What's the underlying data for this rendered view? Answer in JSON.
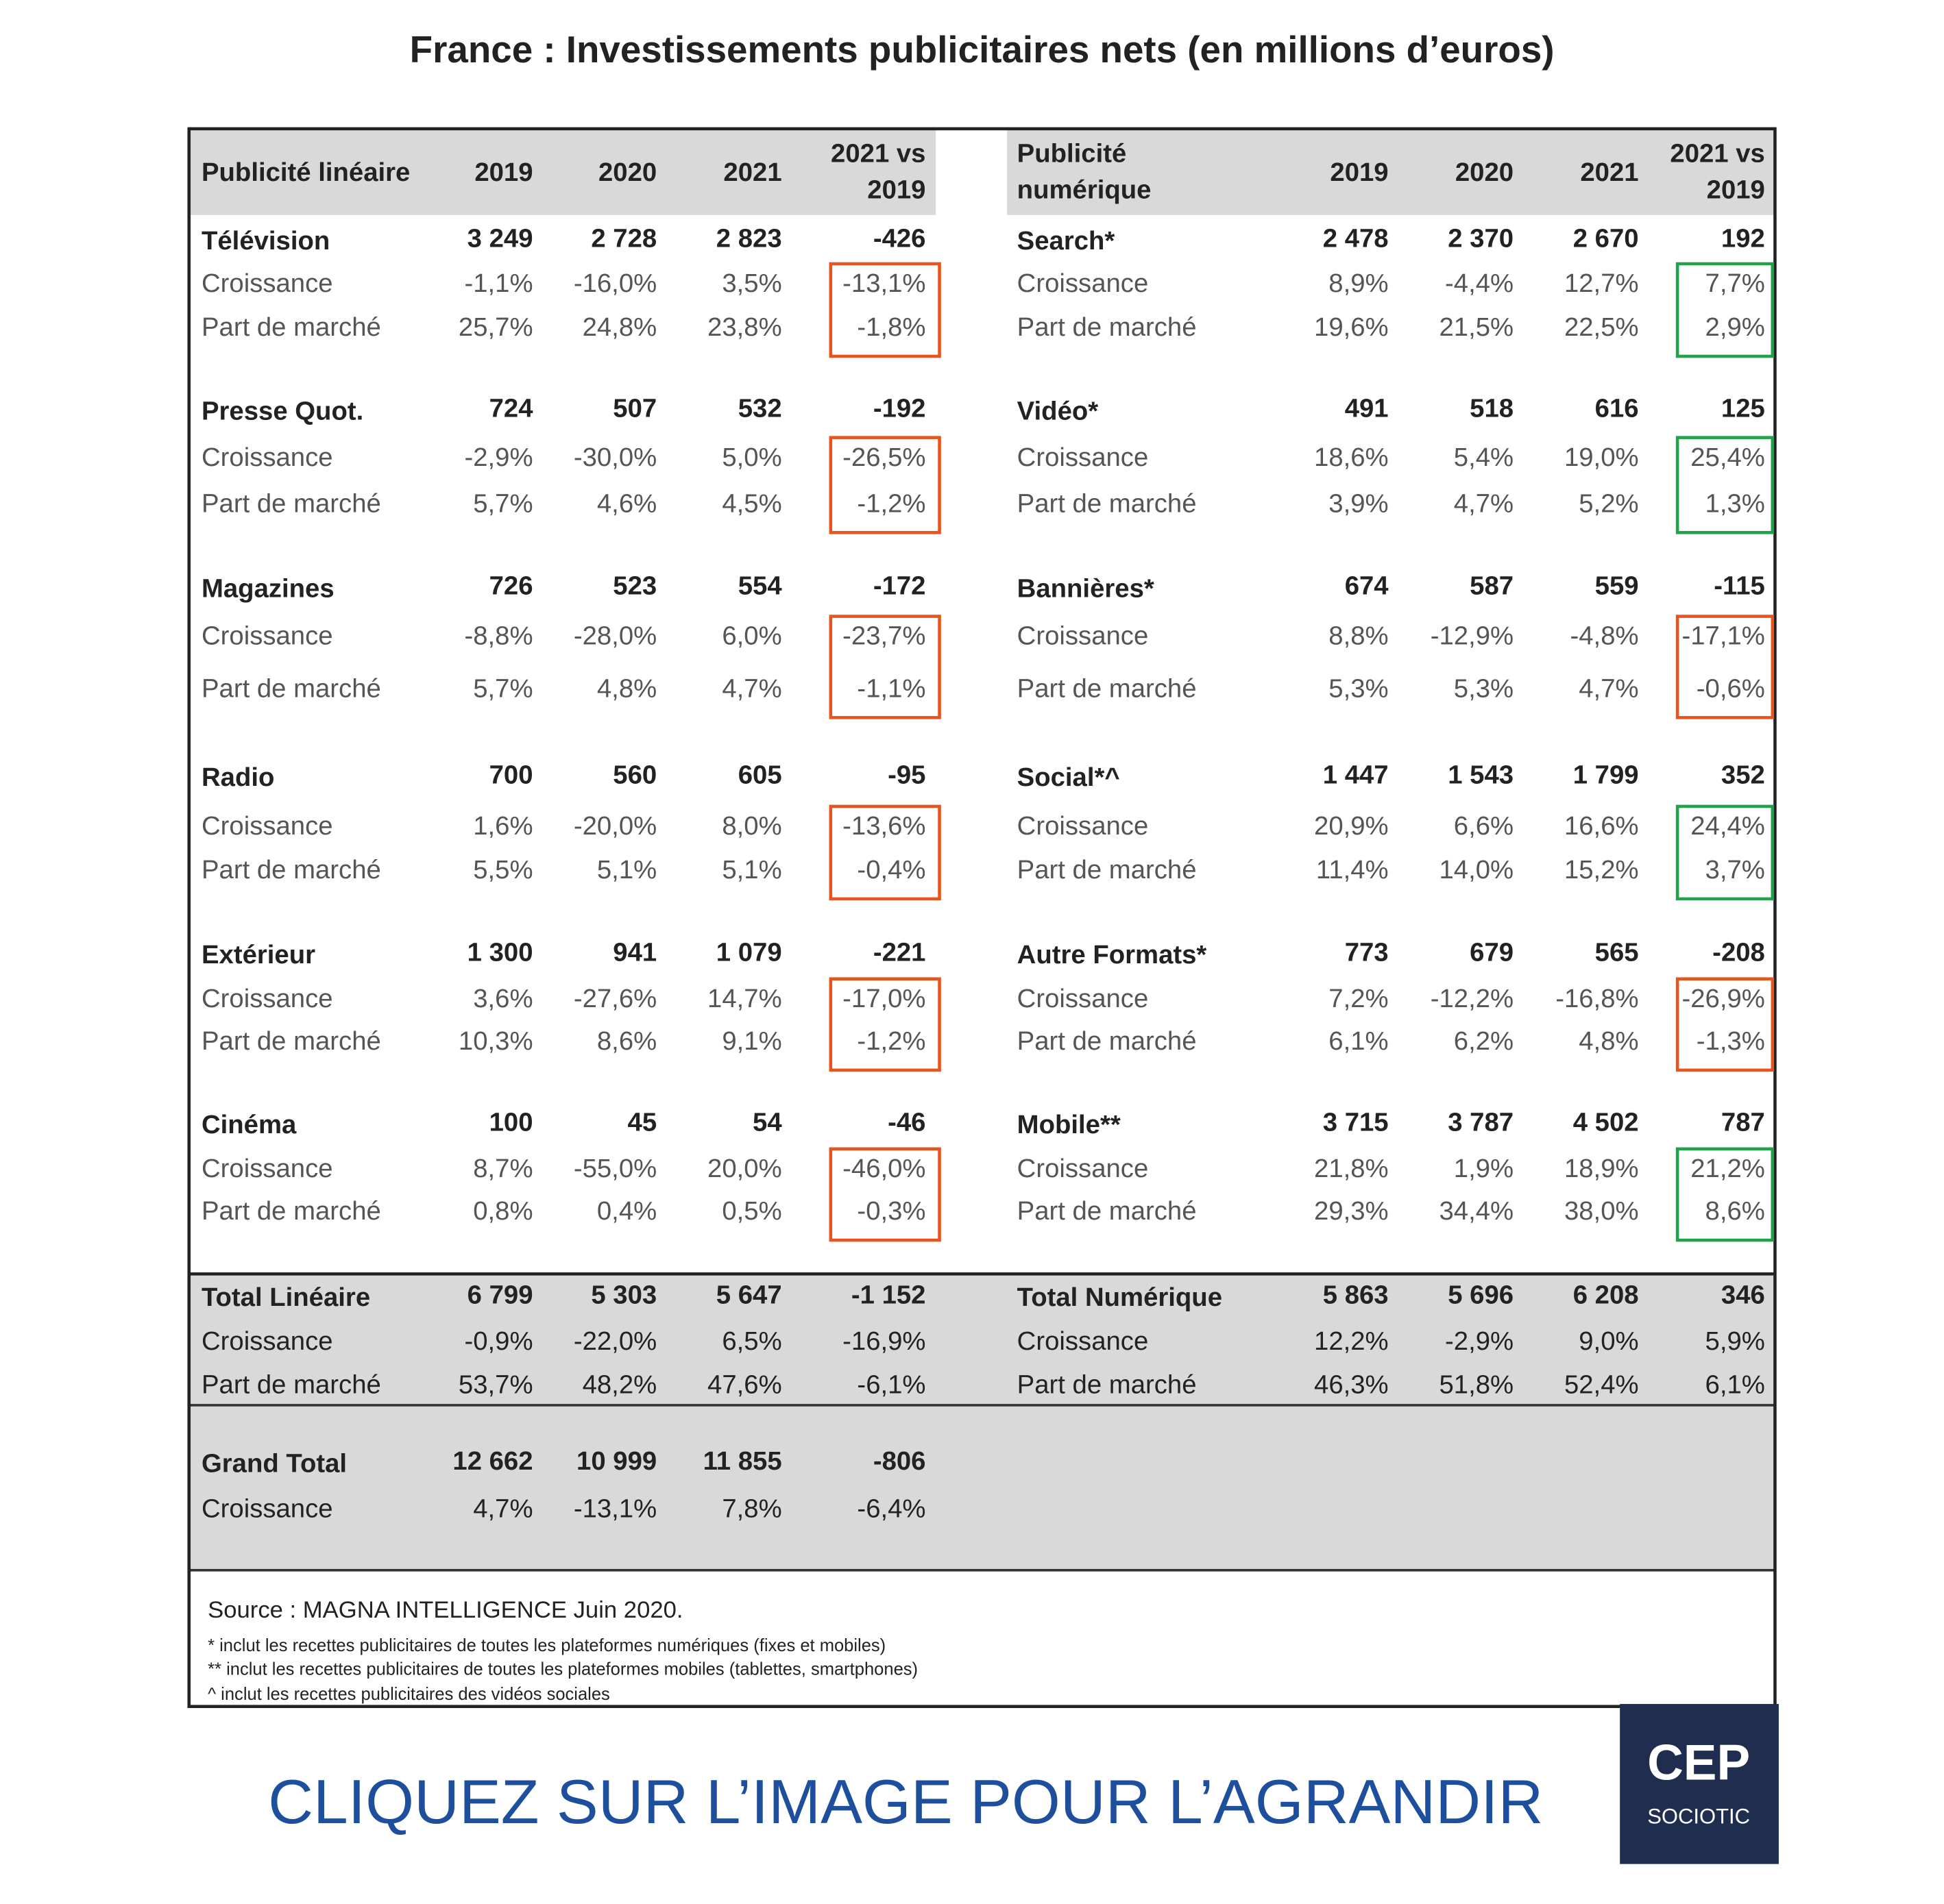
{
  "title": "France : Investissements publicitaires nets (en millions d’euros)",
  "growth_label": "Croissance",
  "share_label": "Part de marché",
  "left": {
    "header": [
      [
        "Publicité linéaire"
      ],
      [
        "2019"
      ],
      [
        "2020"
      ],
      [
        "2021"
      ],
      [
        "2021 vs",
        "2019"
      ]
    ],
    "groups": [
      {
        "name": "Télévision",
        "values": [
          "3 249",
          "2 728",
          "2 823",
          "-426"
        ],
        "growth": [
          "-1,1%",
          "-16,0%",
          "3,5%",
          "-13,1%"
        ],
        "share": [
          "25,7%",
          "24,8%",
          "23,8%",
          "-1,8%"
        ],
        "highlight": "#e8541e"
      },
      {
        "name": "Presse Quot.",
        "values": [
          "724",
          "507",
          "532",
          "-192"
        ],
        "growth": [
          "-2,9%",
          "-30,0%",
          "5,0%",
          "-26,5%"
        ],
        "share": [
          "5,7%",
          "4,6%",
          "4,5%",
          "-1,2%"
        ],
        "highlight": "#e8541e"
      },
      {
        "name": "Magazines",
        "values": [
          "726",
          "523",
          "554",
          "-172"
        ],
        "growth": [
          "-8,8%",
          "-28,0%",
          "6,0%",
          "-23,7%"
        ],
        "share": [
          "5,7%",
          "4,8%",
          "4,7%",
          "-1,1%"
        ],
        "highlight": "#e8541e"
      },
      {
        "name": "Radio",
        "values": [
          "700",
          "560",
          "605",
          "-95"
        ],
        "growth": [
          "1,6%",
          "-20,0%",
          "8,0%",
          "-13,6%"
        ],
        "share": [
          "5,5%",
          "5,1%",
          "5,1%",
          "-0,4%"
        ],
        "highlight": "#e8541e"
      },
      {
        "name": "Extérieur",
        "values": [
          "1 300",
          "941",
          "1 079",
          "-221"
        ],
        "growth": [
          "3,6%",
          "-27,6%",
          "14,7%",
          "-17,0%"
        ],
        "share": [
          "10,3%",
          "8,6%",
          "9,1%",
          "-1,2%"
        ],
        "highlight": "#e8541e"
      },
      {
        "name": "Cinéma",
        "values": [
          "100",
          "45",
          "54",
          "-46"
        ],
        "growth": [
          "8,7%",
          "-55,0%",
          "20,0%",
          "-46,0%"
        ],
        "share": [
          "0,8%",
          "0,4%",
          "0,5%",
          "-0,3%"
        ],
        "highlight": "#e8541e"
      }
    ],
    "total": {
      "name": "Total Linéaire",
      "values": [
        "6 799",
        "5 303",
        "5 647",
        "-1 152"
      ],
      "growth": [
        "-0,9%",
        "-22,0%",
        "6,5%",
        "-16,9%"
      ],
      "share": [
        "53,7%",
        "48,2%",
        "47,6%",
        "-6,1%"
      ]
    }
  },
  "right": {
    "header": [
      [
        "Publicité",
        "numérique"
      ],
      [
        "2019"
      ],
      [
        "2020"
      ],
      [
        "2021"
      ],
      [
        "2021 vs",
        "2019"
      ]
    ],
    "groups": [
      {
        "name": "Search*",
        "values": [
          "2 478",
          "2 370",
          "2 670",
          "192"
        ],
        "growth": [
          "8,9%",
          "-4,4%",
          "12,7%",
          "7,7%"
        ],
        "share": [
          "19,6%",
          "21,5%",
          "22,5%",
          "2,9%"
        ],
        "highlight": "#1fa24a"
      },
      {
        "name": "Vidéo*",
        "values": [
          "491",
          "518",
          "616",
          "125"
        ],
        "growth": [
          "18,6%",
          "5,4%",
          "19,0%",
          "25,4%"
        ],
        "share": [
          "3,9%",
          "4,7%",
          "5,2%",
          "1,3%"
        ],
        "highlight": "#1fa24a"
      },
      {
        "name": "Bannières*",
        "values": [
          "674",
          "587",
          "559",
          "-115"
        ],
        "growth": [
          "8,8%",
          "-12,9%",
          "-4,8%",
          "-17,1%"
        ],
        "share": [
          "5,3%",
          "5,3%",
          "4,7%",
          "-0,6%"
        ],
        "highlight": "#e8541e"
      },
      {
        "name": "Social*^",
        "values": [
          "1 447",
          "1 543",
          "1 799",
          "352"
        ],
        "growth": [
          "20,9%",
          "6,6%",
          "16,6%",
          "24,4%"
        ],
        "share": [
          "11,4%",
          "14,0%",
          "15,2%",
          "3,7%"
        ],
        "highlight": "#1fa24a"
      },
      {
        "name": "Autre Formats*",
        "values": [
          "773",
          "679",
          "565",
          "-208"
        ],
        "growth": [
          "7,2%",
          "-12,2%",
          "-16,8%",
          "-26,9%"
        ],
        "share": [
          "6,1%",
          "6,2%",
          "4,8%",
          "-1,3%"
        ],
        "highlight": "#e8541e"
      },
      {
        "name": "Mobile**",
        "values": [
          "3 715",
          "3 787",
          "4 502",
          "787"
        ],
        "growth": [
          "21,8%",
          "1,9%",
          "18,9%",
          "21,2%"
        ],
        "share": [
          "29,3%",
          "34,4%",
          "38,0%",
          "8,6%"
        ],
        "highlight": "#1fa24a"
      }
    ],
    "total": {
      "name": "Total Numérique",
      "values": [
        "5 863",
        "5 696",
        "6 208",
        "346"
      ],
      "growth": [
        "12,2%",
        "-2,9%",
        "9,0%",
        "5,9%"
      ],
      "share": [
        "46,3%",
        "51,8%",
        "52,4%",
        "6,1%"
      ]
    }
  },
  "grand_total": {
    "name": "Grand Total",
    "values": [
      "12 662",
      "10 999",
      "11 855",
      "-806"
    ],
    "growth": [
      "4,7%",
      "-13,1%",
      "7,8%",
      "-6,4%"
    ]
  },
  "source": "Source : MAGNA INTELLIGENCE Juin 2020.",
  "footnotes": [
    "* inclut les recettes publicitaires de toutes les plateformes numériques (fixes et mobiles)",
    "** inclut les recettes publicitaires de toutes les plateformes mobiles (tablettes, smartphones)",
    "^ inclut les recettes publicitaires des vidéos sociales"
  ],
  "call_to_action": "CLIQUEZ SUR L’IMAGE POUR L’AGRANDIR",
  "logo": {
    "title": "CEP",
    "subtitle": "SOCIOTIC"
  }
}
